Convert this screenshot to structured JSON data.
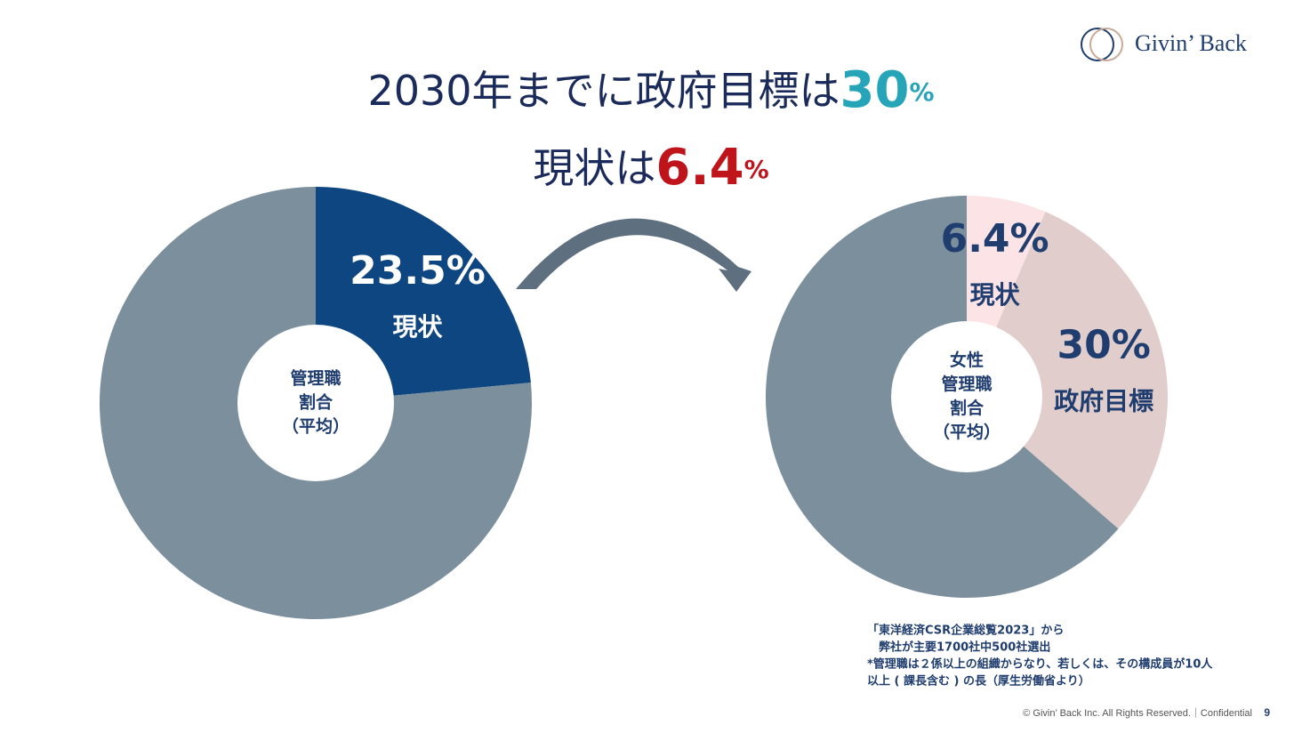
{
  "header": {
    "logo": "Givin’ Back",
    "title_line1": [
      "2030年までに政府目標は",
      "30",
      "%"
    ],
    "title_line2": [
      "現状は",
      "6.4",
      "%"
    ]
  },
  "chart_data": [
    {
      "type": "pie",
      "categories": [
        "現状",
        null
      ],
      "values": [
        23.5,
        76.5
      ],
      "value_labels": [
        "23.5%",
        null
      ],
      "colors": [
        "#0d4680",
        "#7b8f9c"
      ],
      "label_color": "#ffffff",
      "center_label": [
        "管理職",
        "割合",
        "（平均）"
      ]
    },
    {
      "type": "pie",
      "categories": [
        "現状",
        "政府目標",
        null
      ],
      "values": [
        6.4,
        30,
        63.6
      ],
      "value_labels": [
        "6.4%",
        "30%",
        null
      ],
      "colors": [
        "#fbe3e6",
        "#e2cdcd",
        "#7b8f9c"
      ],
      "label_color": "#1f3d6e",
      "center_label": [
        "女性",
        "管理職",
        "割合",
        "（平均）"
      ]
    }
  ],
  "notes": [
    "「東洋経済CSR企業総覧2023」から",
    "　弊社が主要1700社中500社選出",
    "*管理職は２係以上の組織からなり、若しくは、その構成員が10人",
    "以上 ( 課長含む ) の長（厚生労働省より）"
  ],
  "footer": {
    "copyright": "© Givin’ Back Inc. All Rights Reserved.｜Confidential",
    "page": "9"
  }
}
